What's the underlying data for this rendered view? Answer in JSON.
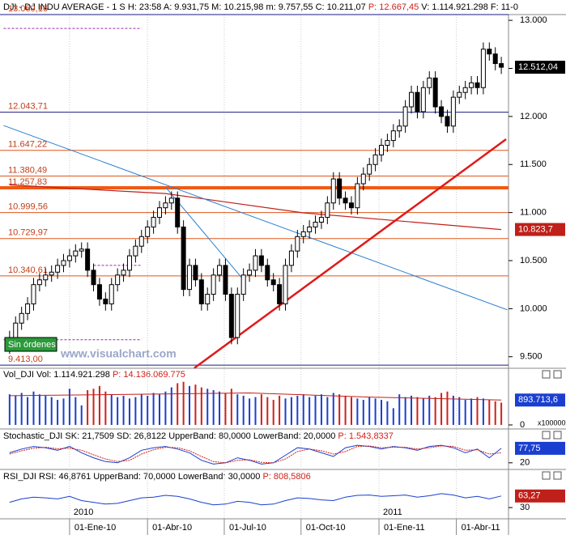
{
  "chart_data": [
    {
      "type": "candlestick",
      "title": "DJI - DJ INDU AVERAGE - 1 S  H: 23:58  A: 9.931,75  M: 10.215,98  m: 9.757,55  C: 10.211,07",
      "subtitle": "P: 12.667,45",
      "extra": "V: 1.114.921.298  F: 11-0",
      "xlim": [
        -1.6,
        83.2
      ],
      "xticks": [
        {
          "value": 10,
          "label": "01-Ene-10"
        },
        {
          "value": 23,
          "label": "01-Abr-10"
        },
        {
          "value": 35.8,
          "label": "01-Jul-10"
        },
        {
          "value": 48.6,
          "label": "01-Oct-10"
        },
        {
          "value": 61.6,
          "label": "01-Ene-11"
        },
        {
          "value": 74.5,
          "label": "01-Abr-11"
        }
      ],
      "year_ticks": [
        {
          "value": 10,
          "label": "2010"
        },
        {
          "value": 61.6,
          "label": "2011"
        }
      ],
      "ylim": [
        9380,
        13060
      ],
      "yticks": [
        {
          "value": 9500,
          "label": "9.500"
        },
        {
          "value": 10000,
          "label": "10.000"
        },
        {
          "value": 10500,
          "label": "10.500"
        },
        {
          "value": 11000,
          "label": "11.000"
        },
        {
          "value": 11500,
          "label": "11.500"
        },
        {
          "value": 12000,
          "label": "12.000"
        },
        {
          "value": 12500,
          "label": "12.500"
        },
        {
          "value": 13000,
          "label": "13.000"
        }
      ],
      "open": [
        9600,
        9700,
        9850,
        9950,
        10050,
        10250,
        10300,
        10350,
        10380,
        10450,
        10500,
        10550,
        10600,
        10620,
        10400,
        10250,
        10100,
        10050,
        10250,
        10350,
        10400,
        10550,
        10650,
        10750,
        10850,
        10950,
        11050,
        11100,
        11150,
        10850,
        10200,
        10450,
        10300,
        10050,
        10150,
        10350,
        10450,
        10150,
        9700,
        10150,
        10350,
        10400,
        10550,
        10450,
        10300,
        10250,
        10050,
        10450,
        10600,
        10750,
        10800,
        10850,
        10900,
        10950,
        11100,
        11350,
        11150,
        11100,
        11050,
        11300,
        11400,
        11500,
        11600,
        11700,
        11750,
        11850,
        11900,
        12100,
        12250,
        12050,
        12300,
        12400,
        12100,
        12000,
        11900,
        12200,
        12250,
        12300,
        12350,
        12300,
        12700,
        12650,
        12550
      ],
      "high": [
        9770,
        9920,
        10020,
        10120,
        10320,
        10370,
        10420,
        10450,
        10520,
        10570,
        10620,
        10670,
        10690,
        10690,
        10470,
        10320,
        10170,
        10320,
        10420,
        10470,
        10620,
        10720,
        10820,
        10920,
        11020,
        11120,
        11170,
        11220,
        11220,
        10920,
        10520,
        10520,
        10370,
        10220,
        10420,
        10520,
        10520,
        10220,
        10220,
        10420,
        10470,
        10620,
        10620,
        10520,
        10370,
        10320,
        10520,
        10670,
        10820,
        10870,
        10920,
        10970,
        11020,
        11170,
        11420,
        11420,
        11220,
        11170,
        11370,
        11470,
        11570,
        11670,
        11770,
        11820,
        11920,
        11970,
        12170,
        12320,
        12320,
        12370,
        12470,
        12470,
        12170,
        12070,
        12270,
        12320,
        12370,
        12420,
        12420,
        12770,
        12770,
        12720,
        12620
      ],
      "low": [
        9530,
        9630,
        9780,
        9880,
        9980,
        10180,
        10230,
        10280,
        10310,
        10380,
        10430,
        10480,
        10530,
        10330,
        10180,
        10030,
        9980,
        9980,
        10180,
        10280,
        10330,
        10480,
        10580,
        10680,
        10780,
        10880,
        10980,
        11030,
        10780,
        10130,
        10130,
        10230,
        9980,
        9980,
        10080,
        10280,
        10080,
        9630,
        9630,
        10080,
        10280,
        10330,
        10380,
        10230,
        10180,
        9980,
        9980,
        10380,
        10530,
        10680,
        10730,
        10780,
        10830,
        10880,
        11030,
        11080,
        11030,
        10980,
        10980,
        11230,
        11330,
        11430,
        11530,
        11630,
        11680,
        11780,
        11830,
        12030,
        11980,
        11980,
        12230,
        12030,
        11930,
        11830,
        11830,
        12130,
        12180,
        12230,
        12230,
        12230,
        12580,
        12480,
        12442
      ],
      "close": [
        9700,
        9850,
        9950,
        10050,
        10250,
        10300,
        10350,
        10380,
        10450,
        10500,
        10550,
        10600,
        10620,
        10400,
        10250,
        10100,
        10050,
        10250,
        10350,
        10400,
        10550,
        10650,
        10750,
        10850,
        10950,
        11050,
        11100,
        11150,
        10850,
        10200,
        10450,
        10300,
        10050,
        10150,
        10350,
        10450,
        10150,
        9700,
        10150,
        10350,
        10400,
        10550,
        10450,
        10300,
        10250,
        10050,
        10450,
        10600,
        10750,
        10800,
        10850,
        10900,
        10950,
        11100,
        11350,
        11150,
        11100,
        11050,
        11300,
        11400,
        11500,
        11600,
        11700,
        11750,
        11850,
        11900,
        12100,
        12250,
        12050,
        12300,
        12400,
        12100,
        12000,
        11900,
        12200,
        12250,
        12300,
        12350,
        12300,
        12700,
        12650,
        12550,
        12512
      ],
      "up_color": "#ffffff",
      "down_color": "#000000",
      "levels": [
        {
          "value": 13060.16,
          "label": "13.060,16",
          "color": "#1a1a80"
        },
        {
          "value": 12043.71,
          "label": "12.043,71",
          "color": "#1a1a80"
        },
        {
          "value": 11647.22,
          "label": "11.647,22",
          "color": "#e0561a"
        },
        {
          "value": 11380.49,
          "label": "11.380,49",
          "color": "#e0561a"
        },
        {
          "value": 11257.83,
          "label": "11.257,83",
          "color": "#f05a14",
          "width": 4
        },
        {
          "value": 10999.56,
          "label": "10.999,56",
          "color": "#e0561a"
        },
        {
          "value": 10729.97,
          "label": "10.729,97",
          "color": "#e0561a"
        },
        {
          "value": 10340.61,
          "label": "10.340,61",
          "color": "#e0561a"
        },
        {
          "value": 9413,
          "label": "9.413,00",
          "color": "#1a1a80"
        }
      ],
      "moving_average": {
        "x": [
          0,
          26,
          49,
          82
        ],
        "values": [
          11287,
          11198,
          10997,
          10823.7
        ],
        "color": "#c0201a"
      },
      "tags": [
        {
          "value": 12512.04,
          "label": "12.512,04",
          "color": "#000000"
        },
        {
          "value": 10823.7,
          "label": "10.823,7",
          "color": "#c0201a"
        }
      ],
      "trendlines": [
        {
          "x": [
            -1,
            83
          ],
          "y": [
            11906,
            9988
          ],
          "color": "#2a7fd0",
          "width": 1
        },
        {
          "x": [
            30.8,
            82.8
          ],
          "y": [
            9382,
            11763
          ],
          "color": "#e01a1a",
          "width": 2.5
        },
        {
          "x": [
            26.1,
            38.9
          ],
          "y": [
            11258,
            10308
          ],
          "color": "#2a7fd0",
          "width": 1
        }
      ],
      "dashed_lines": [
        {
          "x": [
            -1,
            22
          ],
          "y": [
            12916,
            12916
          ]
        },
        {
          "x": [
            14,
            22
          ],
          "y": [
            10451,
            10451
          ]
        },
        {
          "x": [
            -1,
            22
          ],
          "y": [
            9677,
            9677
          ]
        }
      ],
      "badge": "Sin órdenes",
      "watermark": "www.visualchart.com"
    },
    {
      "type": "bar",
      "title": "Vol_DJI Vol: 1.114.921.298",
      "subtitle": "P: 14.136.069.775",
      "ylim": [
        0,
        1600000
      ],
      "yticks": [
        0
      ],
      "scale_note": "x100000",
      "values": [
        1100000,
        1050000,
        1150000,
        1000000,
        1200000,
        1100000,
        1050000,
        1000000,
        900000,
        950000,
        1300000,
        1000000,
        700000,
        1250000,
        1300000,
        1400000,
        1200000,
        1100000,
        1000000,
        1050000,
        950000,
        1000000,
        1100000,
        1050000,
        1150000,
        1100000,
        1200000,
        1350000,
        1500000,
        1550000,
        1400000,
        1450000,
        1350000,
        1300000,
        1250000,
        1200000,
        1150000,
        1300000,
        1100000,
        1050000,
        950000,
        1000000,
        1100000,
        1000000,
        900000,
        1050000,
        950000,
        1000000,
        1050000,
        1100000,
        1000000,
        1050000,
        1100000,
        1000000,
        1150000,
        1100000,
        1050000,
        1000000,
        950000,
        900000,
        1000000,
        950000,
        900000,
        850000,
        600000,
        1100000,
        1000000,
        1050000,
        1000000,
        950000,
        1050000,
        1000000,
        1150000,
        1200000,
        1050000,
        1000000,
        900000,
        950000,
        1000000,
        950000,
        900000,
        850000,
        800000
      ],
      "up_color": "#1a3fd0",
      "down_color": "#d0201a",
      "average": {
        "x": [
          0,
          20,
          40,
          60,
          82
        ],
        "values": [
          1050000,
          1100000,
          1150000,
          1000000,
          893713.6
        ],
        "color": "#c0201a"
      },
      "tag": {
        "value": 893713.6,
        "label": "893.713,6",
        "color": "#1a3fd0"
      }
    },
    {
      "type": "line",
      "title": "Stochastic_DJI SK: 21,7509 SD: 26,8122 UpperBand: 80,0000 LowerBand: 20,0000",
      "subtitle": "P: 1.543,8337",
      "ylim": [
        0,
        100
      ],
      "yticks": [
        20
      ],
      "series": [
        {
          "color": "#1a3fd0",
          "x": [
            0,
            2,
            4,
            6,
            8,
            10,
            12,
            14,
            16,
            18,
            20,
            22,
            24,
            26,
            28,
            30,
            32,
            34,
            36,
            38,
            40,
            42,
            44,
            46,
            48,
            50,
            52,
            54,
            56,
            58,
            60,
            62,
            64,
            66,
            68,
            70,
            72,
            74,
            76,
            78,
            80,
            82
          ],
          "values": [
            60,
            75,
            85,
            80,
            70,
            85,
            60,
            40,
            25,
            20,
            40,
            70,
            80,
            85,
            75,
            60,
            30,
            15,
            20,
            40,
            30,
            15,
            20,
            50,
            80,
            75,
            60,
            45,
            80,
            90,
            85,
            75,
            85,
            80,
            70,
            85,
            90,
            80,
            60,
            75,
            40,
            77.75
          ]
        },
        {
          "color": "#d0201a",
          "x": [
            0,
            2,
            4,
            6,
            8,
            10,
            12,
            14,
            16,
            18,
            20,
            22,
            24,
            26,
            28,
            30,
            32,
            34,
            36,
            38,
            40,
            42,
            44,
            46,
            48,
            50,
            52,
            54,
            56,
            58,
            60,
            62,
            64,
            66,
            68,
            70,
            72,
            74,
            76,
            78,
            80,
            82
          ],
          "values": [
            55,
            68,
            78,
            82,
            76,
            78,
            70,
            52,
            35,
            25,
            30,
            55,
            72,
            82,
            80,
            68,
            45,
            25,
            20,
            30,
            32,
            22,
            20,
            35,
            65,
            75,
            68,
            55,
            65,
            85,
            87,
            80,
            82,
            82,
            75,
            80,
            87,
            85,
            70,
            72,
            55,
            60
          ]
        }
      ],
      "tag": {
        "value": 77.75,
        "label": "77,75",
        "color": "#1a3fd0"
      }
    },
    {
      "type": "line",
      "title": "RSI_DJI RSI: 46,8761 UpperBand: 70,0000 LowerBand: 30,0000",
      "subtitle": "P: 808,5806",
      "ylim": [
        0,
        100
      ],
      "yticks": [
        30
      ],
      "series": [
        {
          "color": "#1a3fd0",
          "x": [
            0,
            2,
            4,
            6,
            8,
            10,
            12,
            14,
            16,
            18,
            20,
            22,
            24,
            26,
            28,
            30,
            32,
            34,
            36,
            38,
            40,
            42,
            44,
            46,
            48,
            50,
            52,
            54,
            56,
            58,
            60,
            62,
            64,
            66,
            68,
            70,
            72,
            74,
            76,
            78,
            80,
            82
          ],
          "values": [
            45,
            55,
            60,
            58,
            55,
            62,
            50,
            45,
            40,
            42,
            50,
            58,
            60,
            65,
            62,
            55,
            45,
            38,
            40,
            48,
            45,
            38,
            40,
            50,
            58,
            56,
            52,
            50,
            60,
            65,
            66,
            62,
            64,
            66,
            60,
            64,
            70,
            66,
            58,
            62,
            55,
            63.27
          ]
        }
      ],
      "tag": {
        "value": 63.27,
        "label": "63,27",
        "color": "#c0201a"
      }
    }
  ]
}
